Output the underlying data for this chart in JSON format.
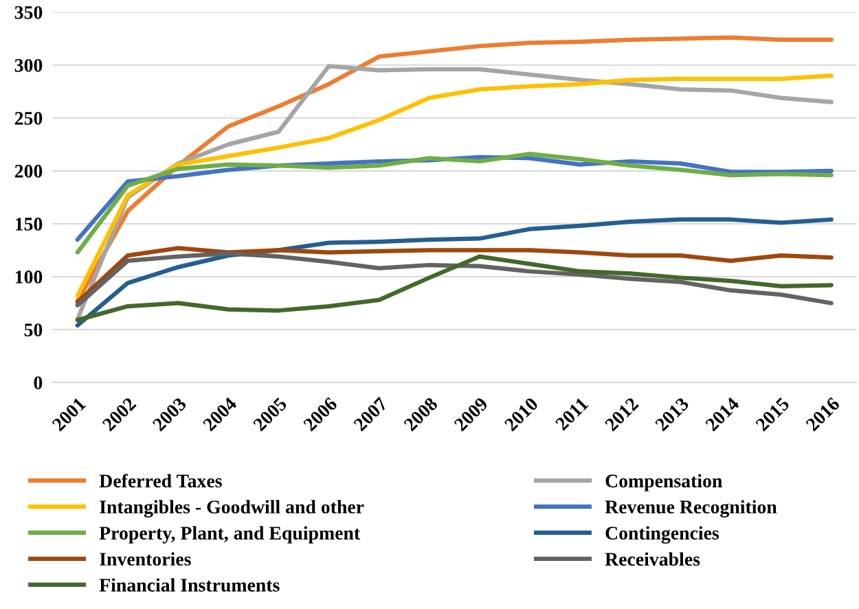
{
  "chart_data": {
    "type": "line",
    "categories": [
      "2001",
      "2002",
      "2003",
      "2004",
      "2005",
      "2006",
      "2007",
      "2008",
      "2009",
      "2010",
      "2011",
      "2012",
      "2013",
      "2014",
      "2015",
      "2016"
    ],
    "series": [
      {
        "name": "Deferred Taxes",
        "color": "#ed7d31",
        "values": [
          77,
          162,
          205,
          242,
          261,
          282,
          308,
          313,
          318,
          321,
          322,
          324,
          325,
          326,
          324,
          324
        ]
      },
      {
        "name": "Compensation",
        "color": "#a5a5a5",
        "values": [
          60,
          175,
          207,
          225,
          237,
          299,
          295,
          296,
          296,
          291,
          286,
          282,
          277,
          276,
          269,
          265
        ]
      },
      {
        "name": "Intangibles - Goodwill and other",
        "color": "#ffc000",
        "values": [
          82,
          177,
          206,
          214,
          222,
          231,
          248,
          269,
          277,
          280,
          282,
          286,
          287,
          287,
          287,
          290
        ]
      },
      {
        "name": "Revenue Recognition",
        "color": "#4472c4",
        "values": [
          135,
          190,
          195,
          201,
          205,
          207,
          209,
          210,
          213,
          212,
          206,
          209,
          207,
          199,
          199,
          200
        ]
      },
      {
        "name": "Property, Plant, and Equipment",
        "color": "#70ad47",
        "values": [
          123,
          186,
          202,
          206,
          205,
          203,
          205,
          212,
          209,
          216,
          211,
          205,
          201,
          196,
          197,
          196
        ]
      },
      {
        "name": "Contingencies",
        "color": "#255e91",
        "values": [
          54,
          94,
          109,
          120,
          125,
          132,
          133,
          135,
          136,
          145,
          148,
          152,
          154,
          154,
          151,
          154
        ]
      },
      {
        "name": "Inventories",
        "color": "#9e480e",
        "values": [
          76,
          120,
          127,
          123,
          125,
          123,
          124,
          125,
          125,
          125,
          123,
          120,
          120,
          115,
          120,
          118
        ]
      },
      {
        "name": "Receivables",
        "color": "#636363",
        "values": [
          73,
          115,
          119,
          122,
          119,
          114,
          108,
          111,
          110,
          105,
          102,
          98,
          95,
          87,
          83,
          75
        ]
      },
      {
        "name": "Financial Instruments",
        "color": "#43682b",
        "values": [
          59,
          72,
          75,
          69,
          68,
          72,
          78,
          99,
          119,
          112,
          105,
          103,
          99,
          96,
          91,
          92
        ]
      }
    ],
    "ylim": [
      0,
      350
    ],
    "yticks": [
      0,
      50,
      100,
      150,
      200,
      250,
      300,
      350
    ],
    "grid": "y",
    "legend": "bottom",
    "marker": "none",
    "line_style": "solid"
  }
}
